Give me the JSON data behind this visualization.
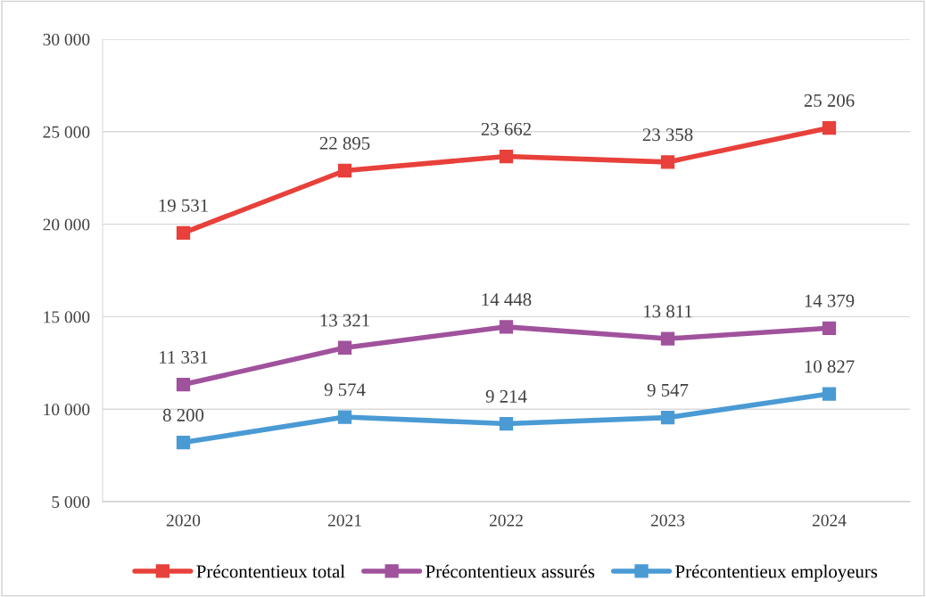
{
  "chart_data": {
    "type": "line",
    "categories": [
      "2020",
      "2021",
      "2022",
      "2023",
      "2024"
    ],
    "series": [
      {
        "name": "Précontentieux total",
        "color": "#e8403a",
        "values": [
          19531,
          22895,
          23662,
          23358,
          25206
        ],
        "value_labels": [
          "19 531",
          "22 895",
          "23 662",
          "23 358",
          "25 206"
        ]
      },
      {
        "name": "Précontentieux assurés",
        "color": "#a0529c",
        "values": [
          11331,
          13321,
          14448,
          13811,
          14379
        ],
        "value_labels": [
          "11 331",
          "13 321",
          "14 448",
          "13 811",
          "14 379"
        ]
      },
      {
        "name": "Précontentieux employeurs",
        "color": "#4a9ad4",
        "values": [
          8200,
          9574,
          9214,
          9547,
          10827
        ],
        "value_labels": [
          "8 200",
          "9 574",
          "9 214",
          "9 547",
          "10 827"
        ]
      }
    ],
    "ylim": [
      5000,
      30000
    ],
    "yticks": [
      {
        "value": 5000,
        "label": "5 000"
      },
      {
        "value": 10000,
        "label": "10 000"
      },
      {
        "value": 15000,
        "label": "15 000"
      },
      {
        "value": 20000,
        "label": "20 000"
      },
      {
        "value": 25000,
        "label": "25 000"
      },
      {
        "value": 30000,
        "label": "30 000"
      }
    ],
    "grid": "y",
    "legend": "bottom",
    "marker": "square",
    "line_style": "solid"
  }
}
